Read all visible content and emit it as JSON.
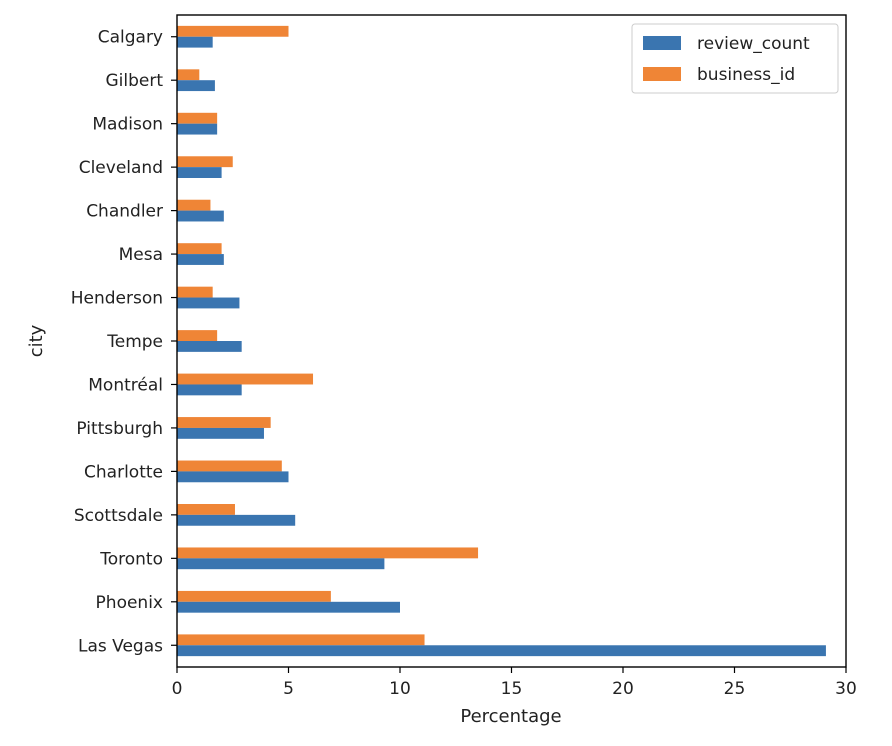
{
  "chart_data": {
    "type": "bar",
    "orientation": "horizontal",
    "title": "",
    "xlabel": "Percentage",
    "ylabel": "city",
    "xlim": [
      0,
      30
    ],
    "xticks": [
      0,
      5,
      10,
      15,
      20,
      25,
      30
    ],
    "grid": false,
    "legend_position": "top-right",
    "categories": [
      "Calgary",
      "Gilbert",
      "Madison",
      "Cleveland",
      "Chandler",
      "Mesa",
      "Henderson",
      "Tempe",
      "Montréal",
      "Pittsburgh",
      "Charlotte",
      "Scottsdale",
      "Toronto",
      "Phoenix",
      "Las Vegas"
    ],
    "series": [
      {
        "name": "review_count",
        "color": "#3a75b0",
        "values": [
          1.6,
          1.7,
          1.8,
          2.0,
          2.1,
          2.1,
          2.8,
          2.9,
          2.9,
          3.9,
          5.0,
          5.3,
          9.3,
          10.0,
          29.1
        ]
      },
      {
        "name": "business_id",
        "color": "#ef8536",
        "values": [
          5.0,
          1.0,
          1.8,
          2.5,
          1.5,
          2.0,
          1.6,
          1.8,
          6.1,
          4.2,
          4.7,
          2.6,
          13.5,
          6.9,
          11.1
        ]
      }
    ]
  }
}
